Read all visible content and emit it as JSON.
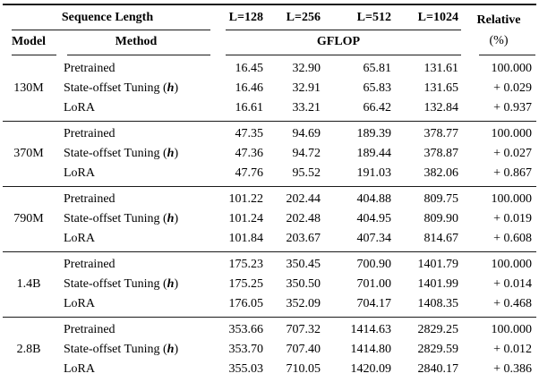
{
  "table": {
    "header": {
      "sequence_length_label": "Sequence Length",
      "model_label": "Model",
      "method_label": "Method",
      "gflop_label": "GFLOP",
      "relative_label": "Relative",
      "relative_unit": "(%)",
      "length_columns": [
        "L=128",
        "L=256",
        "L=512",
        "L=1024"
      ]
    },
    "rule_color": "#1a1a1a",
    "blocks": [
      {
        "model": "130M",
        "rows": [
          {
            "method": [
              {
                "t": "Pretrained"
              }
            ],
            "values": [
              "16.45",
              "32.90",
              "65.81",
              "131.61"
            ],
            "relative": "100.000"
          },
          {
            "method": [
              {
                "t": "State-offset Tuning ("
              },
              {
                "t": "h",
                "math": true
              },
              {
                "t": ")"
              }
            ],
            "values": [
              "16.46",
              "32.91",
              "65.83",
              "131.65"
            ],
            "relative": "+ 0.029"
          },
          {
            "method": [
              {
                "t": "LoRA"
              }
            ],
            "values": [
              "16.61",
              "33.21",
              "66.42",
              "132.84"
            ],
            "relative": "+ 0.937"
          }
        ]
      },
      {
        "model": "370M",
        "rows": [
          {
            "method": [
              {
                "t": "Pretrained"
              }
            ],
            "values": [
              "47.35",
              "94.69",
              "189.39",
              "378.77"
            ],
            "relative": "100.000"
          },
          {
            "method": [
              {
                "t": "State-offset Tuning ("
              },
              {
                "t": "h",
                "math": true
              },
              {
                "t": ")"
              }
            ],
            "values": [
              "47.36",
              "94.72",
              "189.44",
              "378.87"
            ],
            "relative": "+ 0.027"
          },
          {
            "method": [
              {
                "t": "LoRA"
              }
            ],
            "values": [
              "47.76",
              "95.52",
              "191.03",
              "382.06"
            ],
            "relative": "+ 0.867"
          }
        ]
      },
      {
        "model": "790M",
        "rows": [
          {
            "method": [
              {
                "t": "Pretrained"
              }
            ],
            "values": [
              "101.22",
              "202.44",
              "404.88",
              "809.75"
            ],
            "relative": "100.000"
          },
          {
            "method": [
              {
                "t": "State-offset Tuning ("
              },
              {
                "t": "h",
                "math": true
              },
              {
                "t": ")"
              }
            ],
            "values": [
              "101.24",
              "202.48",
              "404.95",
              "809.90"
            ],
            "relative": "+ 0.019"
          },
          {
            "method": [
              {
                "t": "LoRA"
              }
            ],
            "values": [
              "101.84",
              "203.67",
              "407.34",
              "814.67"
            ],
            "relative": "+ 0.608"
          }
        ]
      },
      {
        "model": "1.4B",
        "rows": [
          {
            "method": [
              {
                "t": "Pretrained"
              }
            ],
            "values": [
              "175.23",
              "350.45",
              "700.90",
              "1401.79"
            ],
            "relative": "100.000"
          },
          {
            "method": [
              {
                "t": "State-offset Tuning ("
              },
              {
                "t": "h",
                "math": true
              },
              {
                "t": ")"
              }
            ],
            "values": [
              "175.25",
              "350.50",
              "701.00",
              "1401.99"
            ],
            "relative": "+ 0.014"
          },
          {
            "method": [
              {
                "t": "LoRA"
              }
            ],
            "values": [
              "176.05",
              "352.09",
              "704.17",
              "1408.35"
            ],
            "relative": "+ 0.468"
          }
        ]
      },
      {
        "model": "2.8B",
        "rows": [
          {
            "method": [
              {
                "t": "Pretrained"
              }
            ],
            "values": [
              "353.66",
              "707.32",
              "1414.63",
              "2829.25"
            ],
            "relative": "100.000"
          },
          {
            "method": [
              {
                "t": "State-offset Tuning ("
              },
              {
                "t": "h",
                "math": true
              },
              {
                "t": ")"
              }
            ],
            "values": [
              "353.70",
              "707.40",
              "1414.80",
              "2829.59"
            ],
            "relative": "+ 0.012"
          },
          {
            "method": [
              {
                "t": "LoRA"
              }
            ],
            "values": [
              "355.03",
              "710.05",
              "1420.09",
              "2840.17"
            ],
            "relative": "+ 0.386"
          }
        ]
      }
    ]
  }
}
